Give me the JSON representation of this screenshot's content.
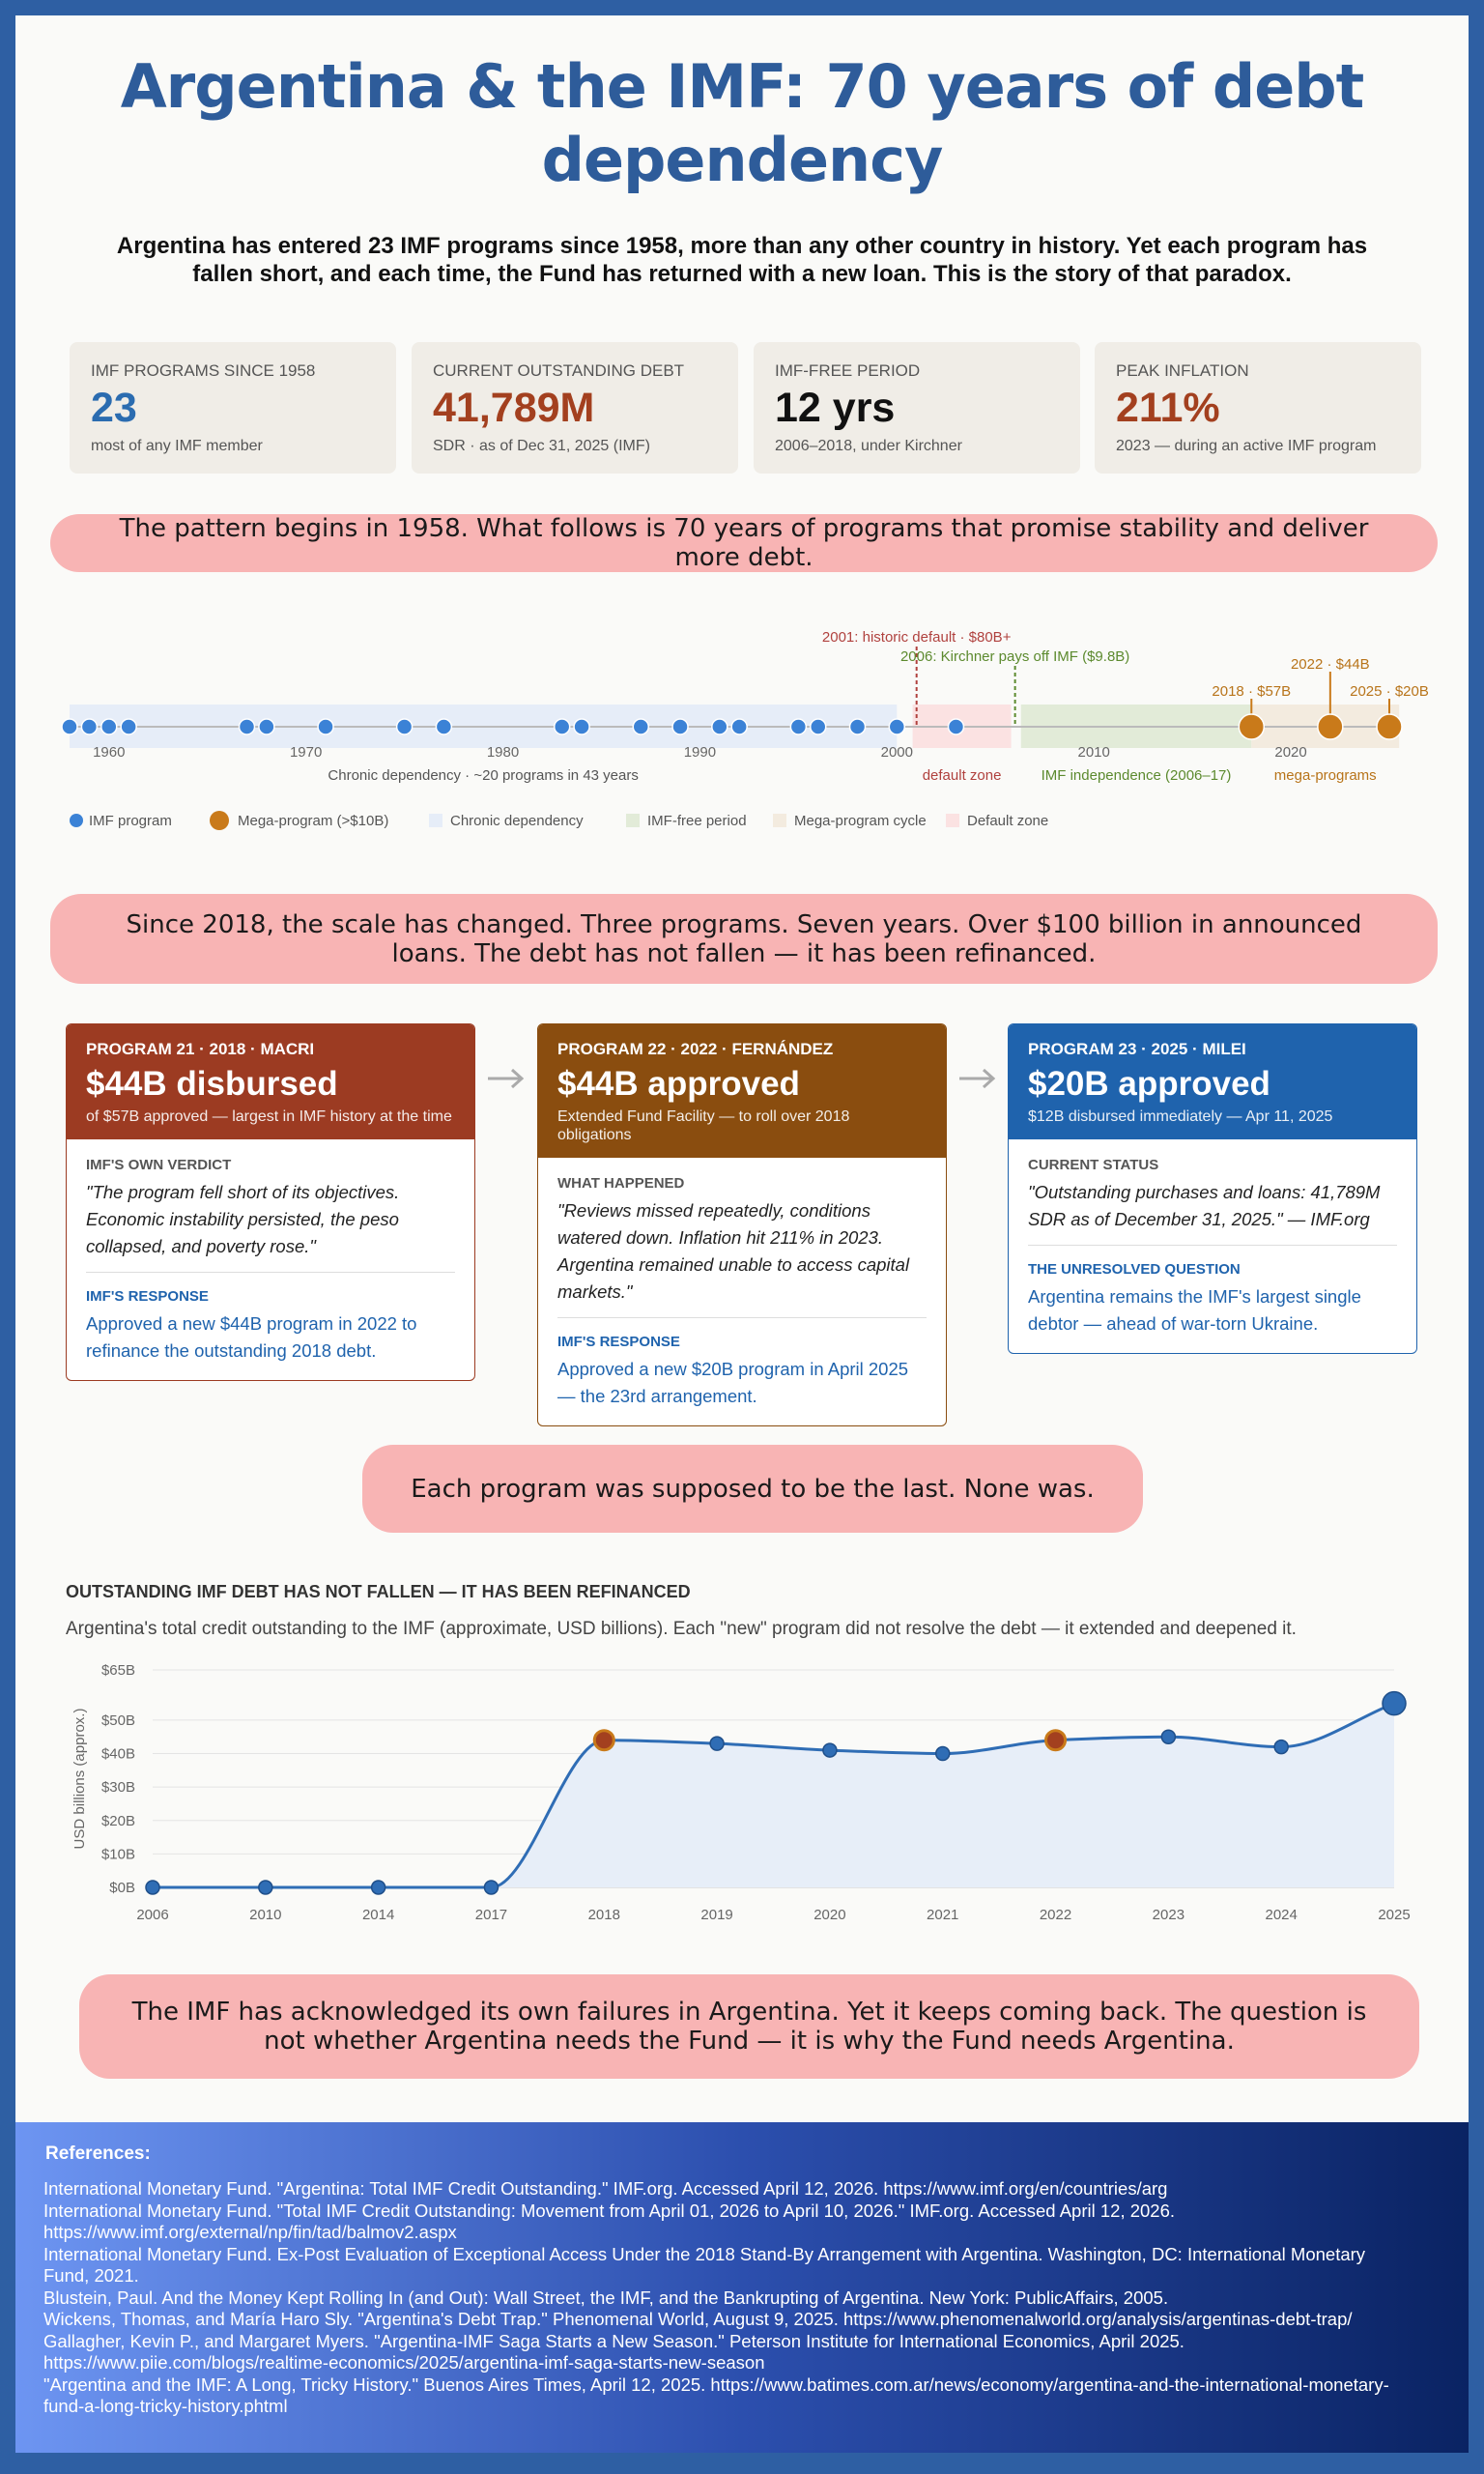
{
  "header": {
    "title": "Argentina & the IMF: 70 years of debt dependency",
    "intro": "Argentina has entered 23 IMF programs since 1958, more than any other country in history. Yet each program has fallen short, and each time, the Fund has returned with a new loan. This is the story of that paradox."
  },
  "stats": [
    {
      "label": "IMF PROGRAMS SINCE 1958",
      "value": "23",
      "note": "most of any IMF member",
      "color": "#2b6cb0"
    },
    {
      "label": "CURRENT OUTSTANDING DEBT",
      "value": "41,789M",
      "note": "SDR · as of Dec 31, 2025 (IMF)",
      "color": "#a3401f"
    },
    {
      "label": "IMF-FREE PERIOD",
      "value": "12 yrs",
      "note": "2006–2018, under Kirchner",
      "color": "#111111"
    },
    {
      "label": "PEAK INFLATION",
      "value": "211%",
      "note": "2023 — during an active IMF program",
      "color": "#a3401f"
    }
  ],
  "callouts": [
    "The pattern begins in 1958. What follows is 70 years of programs that promise stability and deliver more debt.",
    "Since 2018, the scale has changed. Three programs. Seven years. Over $100 billion in announced loans. The debt has not fallen — it has been refinanced.",
    "Each program was supposed to be the last. None was.",
    "The IMF has acknowledged its own failures in Argentina. Yet it keeps coming back. The question is not whether Argentina needs the Fund — it is why the Fund needs Argentina."
  ],
  "chart_data": [
    {
      "type": "timeline",
      "xlim": [
        1958,
        2025
      ],
      "xticks": [
        1960,
        1970,
        1980,
        1990,
        2000,
        2010,
        2020
      ],
      "series": [
        {
          "name": "IMF program",
          "color": "#3b82d6",
          "x": [
            1958,
            1959,
            1960,
            1961,
            1967,
            1968,
            1971,
            1975,
            1977,
            1983,
            1984,
            1987,
            1989,
            1991,
            1992,
            1995,
            1996,
            1998,
            2000,
            2003
          ]
        },
        {
          "name": "Mega-program (>$10B)",
          "color": "#c97a1a",
          "x": [
            2018,
            2022,
            2025
          ],
          "labels": [
            "2018 · $57B",
            "2022 · $44B",
            "2025 · $20B"
          ]
        }
      ],
      "zones": [
        {
          "name": "Chronic dependency",
          "label": "Chronic dependency · ~20 programs in 43 years",
          "range": [
            1958,
            2000
          ],
          "color": "#e6edf8",
          "label_color": "#555555"
        },
        {
          "name": "IMF-free period",
          "label": "IMF independence (2006–17)",
          "range": [
            2006.3,
            2018
          ],
          "color": "#e2ebd8",
          "label_color": "#5c8a2e"
        },
        {
          "name": "Mega-program cycle",
          "label": "mega-programs",
          "range": [
            2018,
            2025.5
          ],
          "color": "#f3ebdf",
          "label_color": "#b8741a"
        },
        {
          "name": "Default zone",
          "label": "default zone",
          "range": [
            2000.8,
            2005.8
          ],
          "color": "#fbe2e2",
          "label_color": "#b0413e"
        }
      ],
      "events": [
        {
          "x": 2001,
          "label": "2001: historic default · $80B+",
          "color": "#b0413e"
        },
        {
          "x": 2006,
          "label": "2006: Kirchner pays off IMF ($9.8B)",
          "color": "#5c8a2e"
        }
      ]
    },
    {
      "type": "line",
      "title": "OUTSTANDING IMF DEBT HAS NOT FALLEN — IT HAS BEEN REFINANCED",
      "subtitle": "Argentina's total credit outstanding to the IMF (approximate, USD billions). Each \"new\" program did not resolve the debt — it extended and deepened it.",
      "y_label": "USD billions (approx.)",
      "categories": [
        "2006",
        "2010",
        "2014",
        "2017",
        "2018",
        "2019",
        "2020",
        "2021",
        "2022",
        "2023",
        "2024",
        "2025"
      ],
      "series": [
        {
          "name": "Outstanding IMF credit",
          "color": "#2f6db5",
          "values": [
            0,
            0,
            0,
            0,
            44,
            43,
            41,
            40,
            44,
            45,
            42,
            55
          ],
          "point_colors": [
            "#2f6db5",
            "#2f6db5",
            "#2f6db5",
            "#2f6db5",
            "#a3401f",
            "#2f6db5",
            "#2f6db5",
            "#2f6db5",
            "#a3401f",
            "#2f6db5",
            "#2f6db5",
            "#2f6db5"
          ]
        }
      ],
      "ylim": [
        0,
        65
      ],
      "yticks": [
        {
          "value": 0,
          "label": "$0B"
        },
        {
          "value": 10,
          "label": "$10B"
        },
        {
          "value": 20,
          "label": "$20B"
        },
        {
          "value": 30,
          "label": "$30B"
        },
        {
          "value": 40,
          "label": "$40B"
        },
        {
          "value": 50,
          "label": "$50B"
        },
        {
          "value": 65,
          "label": "$65B"
        }
      ],
      "grid": true,
      "area_color": "#e7eef8"
    }
  ],
  "programs": [
    {
      "header": "PROGRAM 21 · 2018 · MACRI",
      "headline": "$44B disbursed",
      "subhead": "of $57B approved — largest in IMF history at the time",
      "color": "#9c3b22",
      "sections": [
        {
          "label": "IMF'S OWN VERDICT",
          "text": "\"The program fell short of its objectives. Economic instability persisted, the peso collapsed, and poverty rose.\""
        },
        {
          "label": "IMF'S RESPONSE",
          "text": "Approved a new $44B program in 2022 to refinance the outstanding 2018 debt."
        }
      ]
    },
    {
      "header": "PROGRAM 22 · 2022 · FERNÁNDEZ",
      "headline": "$44B approved",
      "subhead": "Extended Fund Facility — to roll over 2018 obligations",
      "color": "#8a4d0f",
      "sections": [
        {
          "label": "WHAT HAPPENED",
          "text": "\"Reviews missed repeatedly, conditions watered down. Inflation hit 211% in 2023. Argentina remained unable to access capital markets.\""
        },
        {
          "label": "IMF'S RESPONSE",
          "text": "Approved a new $20B program in April 2025 — the 23rd arrangement."
        }
      ]
    },
    {
      "header": "PROGRAM 23 · 2025 · MILEI",
      "headline": "$20B approved",
      "subhead": "$12B disbursed immediately — Apr 11, 2025",
      "color": "#1f63ad",
      "sections": [
        {
          "label": "CURRENT STATUS",
          "text": "\"Outstanding purchases and loans: 41,789M SDR as of December 31, 2025.\" — IMF.org"
        },
        {
          "label": "THE UNRESOLVED QUESTION",
          "text": "Argentina remains the IMF's largest single debtor — ahead of war-torn Ukraine."
        }
      ]
    }
  ],
  "references": {
    "title": "References:",
    "items": [
      "International Monetary Fund. \"Argentina: Total IMF Credit Outstanding.\" IMF.org. Accessed April 12, 2026. https://www.imf.org/en/countries/arg",
      "International Monetary Fund. \"Total IMF Credit Outstanding: Movement from April 01, 2026 to April 10, 2026.\" IMF.org. Accessed April 12, 2026. https://www.imf.org/external/np/fin/tad/balmov2.aspx",
      "International Monetary Fund. Ex-Post Evaluation of Exceptional Access Under the 2018 Stand-By Arrangement with Argentina. Washington, DC: International Monetary Fund, 2021.",
      "Blustein, Paul. And the Money Kept Rolling In (and Out): Wall Street, the IMF, and the Bankrupting of Argentina. New York: PublicAffairs, 2005.",
      "Wickens, Thomas, and María Haro Sly. \"Argentina's Debt Trap.\" Phenomenal World, August 9, 2025. https://www.phenomenalworld.org/analysis/argentinas-debt-trap/",
      "Gallagher, Kevin P., and Margaret Myers. \"Argentina-IMF Saga Starts a New Season.\" Peterson Institute for International Economics, April 2025. https://www.piie.com/blogs/realtime-economics/2025/argentina-imf-saga-starts-new-season",
      "\"Argentina and the IMF: A Long, Tricky History.\" Buenos Aires Times, April 12, 2025. https://www.batimes.com.ar/news/economy/argentina-and-the-international-monetary-fund-a-long-tricky-history.phtml"
    ]
  }
}
